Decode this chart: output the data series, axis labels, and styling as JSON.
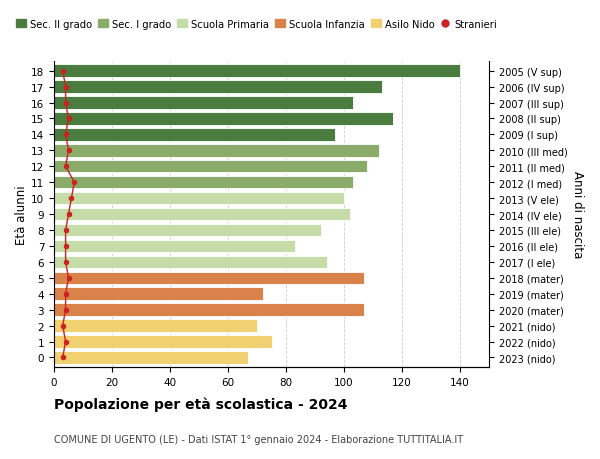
{
  "ages": [
    18,
    17,
    16,
    15,
    14,
    13,
    12,
    11,
    10,
    9,
    8,
    7,
    6,
    5,
    4,
    3,
    2,
    1,
    0
  ],
  "years_labels": [
    "2005 (V sup)",
    "2006 (IV sup)",
    "2007 (III sup)",
    "2008 (II sup)",
    "2009 (I sup)",
    "2010 (III med)",
    "2011 (II med)",
    "2012 (I med)",
    "2013 (V ele)",
    "2014 (IV ele)",
    "2015 (III ele)",
    "2016 (II ele)",
    "2017 (I ele)",
    "2018 (mater)",
    "2019 (mater)",
    "2020 (mater)",
    "2021 (nido)",
    "2022 (nido)",
    "2023 (nido)"
  ],
  "values": [
    140,
    113,
    103,
    117,
    97,
    112,
    108,
    103,
    100,
    102,
    92,
    83,
    94,
    107,
    72,
    107,
    70,
    75,
    67
  ],
  "stranieri": [
    3,
    4,
    4,
    5,
    4,
    5,
    4,
    7,
    6,
    5,
    4,
    4,
    4,
    5,
    4,
    4,
    3,
    4,
    3
  ],
  "bar_colors": [
    "#4a7c3f",
    "#4a7c3f",
    "#4a7c3f",
    "#4a7c3f",
    "#4a7c3f",
    "#8aab6a",
    "#8aab6a",
    "#8aab6a",
    "#c5dba8",
    "#c5dba8",
    "#c5dba8",
    "#c5dba8",
    "#c5dba8",
    "#d9824a",
    "#d9824a",
    "#d9824a",
    "#f0d070",
    "#f0d070",
    "#f0d070"
  ],
  "legend_labels": [
    "Sec. II grado",
    "Sec. I grado",
    "Scuola Primaria",
    "Scuola Infanzia",
    "Asilo Nido",
    "Stranieri"
  ],
  "legend_colors": [
    "#4a7c3f",
    "#8aab6a",
    "#c5dba8",
    "#d9824a",
    "#f0d070",
    "#cc2222"
  ],
  "stranieri_color": "#cc2222",
  "title": "Popolazione per età scolastica - 2024",
  "subtitle": "COMUNE DI UGENTO (LE) - Dati ISTAT 1° gennaio 2024 - Elaborazione TUTTITALIA.IT",
  "ylabel_left": "Età alunni",
  "ylabel_right": "Anni di nascita",
  "xlim": [
    0,
    150
  ],
  "xticks": [
    0,
    20,
    40,
    60,
    80,
    100,
    120,
    140
  ],
  "bar_height": 0.78,
  "grid_color": "#cccccc"
}
